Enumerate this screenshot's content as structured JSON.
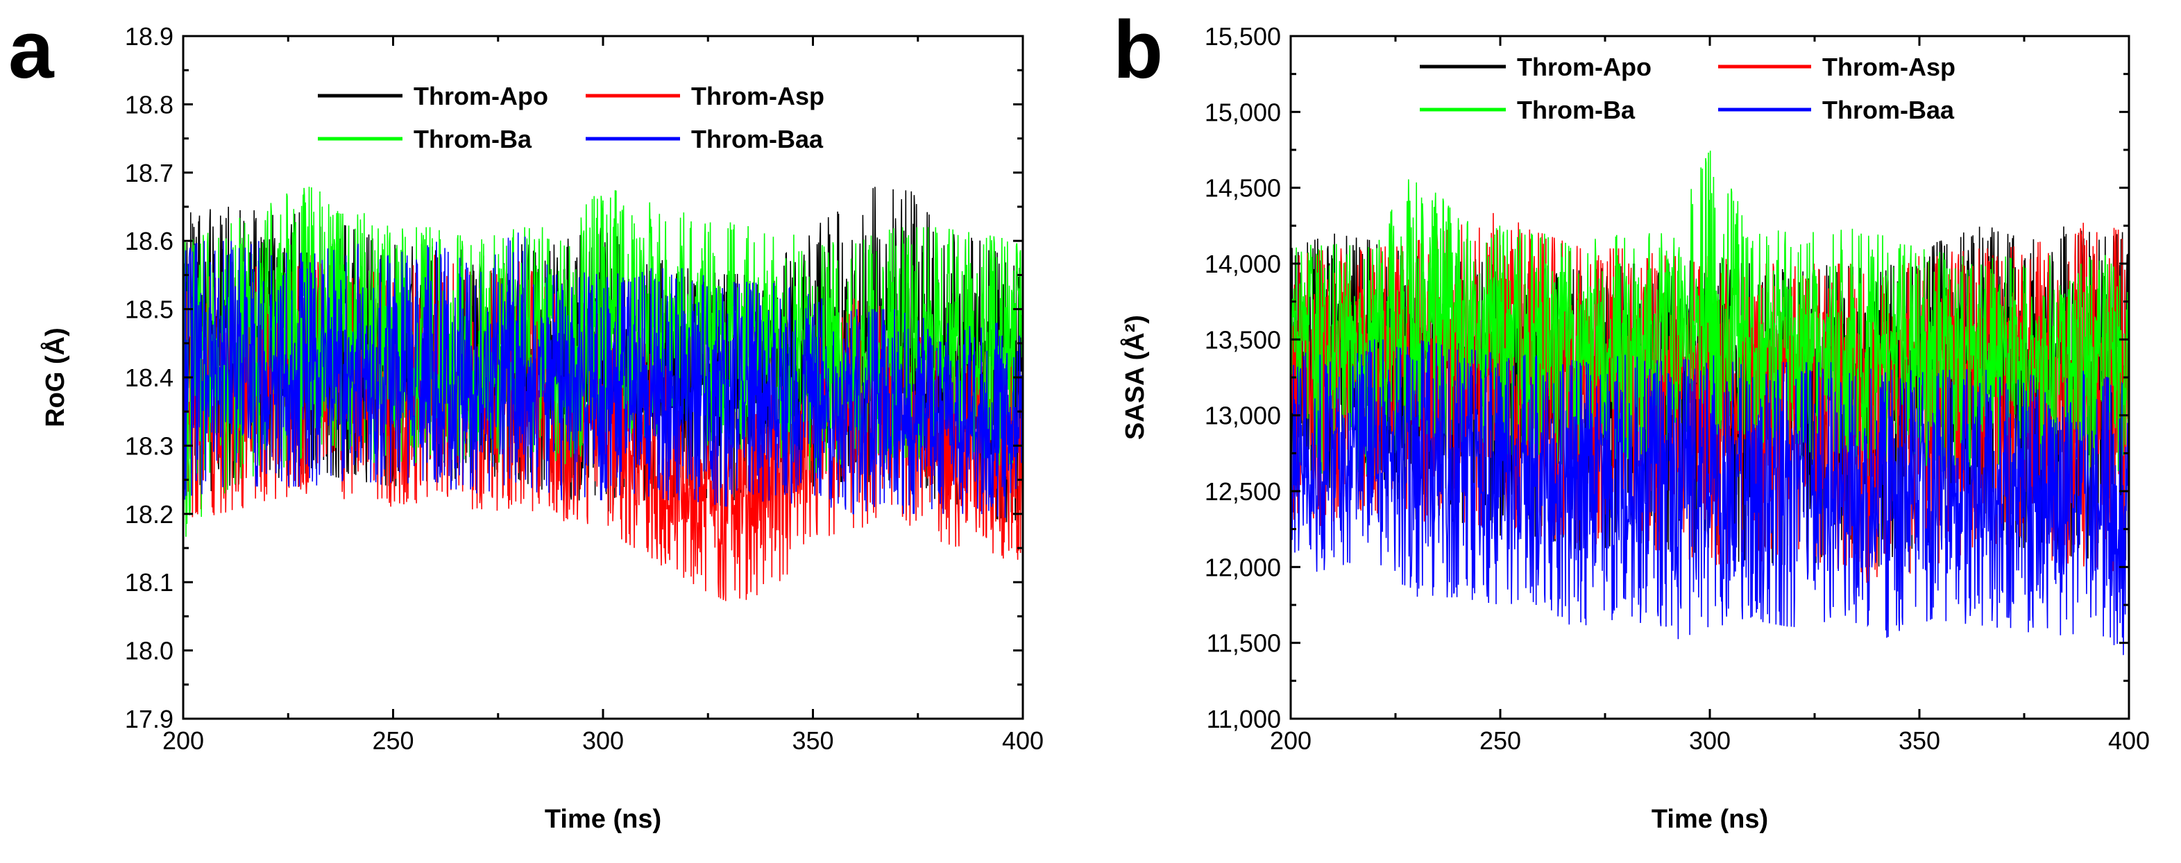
{
  "chart_data": [
    {
      "panel": "a",
      "type": "line",
      "title": "",
      "xlabel": "Time (ns)",
      "ylabel": "RoG (Å)",
      "xlim": [
        200,
        400
      ],
      "ylim": [
        17.9,
        18.9
      ],
      "x_ticks": [
        200,
        250,
        300,
        350,
        400
      ],
      "x_tick_labels": [
        "200",
        "250",
        "300",
        "350",
        "400"
      ],
      "y_ticks": [
        17.9,
        18.0,
        18.1,
        18.2,
        18.3,
        18.4,
        18.5,
        18.6,
        18.7,
        18.8,
        18.9
      ],
      "y_tick_labels": [
        "17.9",
        "18.0",
        "18.1",
        "18.2",
        "18.3",
        "18.4",
        "18.5",
        "18.6",
        "18.7",
        "18.8",
        "18.9"
      ],
      "legend_position": "top",
      "series": [
        {
          "name": "Throm-Apo",
          "color": "#000000",
          "x": [
            200,
            210,
            220,
            230,
            240,
            250,
            260,
            270,
            280,
            290,
            300,
            310,
            320,
            330,
            340,
            350,
            360,
            370,
            380,
            390,
            400
          ],
          "mean": [
            18.45,
            18.47,
            18.45,
            18.44,
            18.43,
            18.41,
            18.4,
            18.39,
            18.4,
            18.41,
            18.42,
            18.4,
            18.38,
            18.38,
            18.39,
            18.43,
            18.46,
            18.46,
            18.44,
            18.43,
            18.42
          ],
          "min": [
            18.22,
            18.24,
            18.25,
            18.26,
            18.25,
            18.24,
            18.25,
            18.24,
            18.25,
            18.22,
            18.2,
            18.22,
            18.22,
            18.21,
            18.22,
            18.24,
            18.25,
            18.24,
            18.22,
            18.2,
            18.18
          ],
          "max": [
            18.64,
            18.65,
            18.65,
            18.64,
            18.62,
            18.6,
            18.6,
            18.58,
            18.6,
            18.6,
            18.62,
            18.58,
            18.56,
            18.55,
            18.56,
            18.62,
            18.66,
            18.7,
            18.62,
            18.6,
            18.58
          ]
        },
        {
          "name": "Throm-Asp",
          "color": "#ff0000",
          "x": [
            200,
            210,
            220,
            230,
            240,
            250,
            260,
            270,
            280,
            290,
            300,
            310,
            320,
            330,
            340,
            350,
            360,
            370,
            380,
            390,
            400
          ],
          "mean": [
            18.36,
            18.37,
            18.37,
            18.38,
            18.37,
            18.36,
            18.37,
            18.36,
            18.37,
            18.34,
            18.33,
            18.28,
            18.24,
            18.22,
            18.24,
            18.3,
            18.34,
            18.33,
            18.3,
            18.28,
            18.27
          ],
          "min": [
            18.19,
            18.2,
            18.22,
            18.23,
            18.22,
            18.21,
            18.22,
            18.2,
            18.21,
            18.19,
            18.18,
            18.14,
            18.1,
            18.07,
            18.08,
            18.16,
            18.18,
            18.18,
            18.16,
            18.14,
            18.13
          ],
          "max": [
            18.56,
            18.57,
            18.56,
            18.58,
            18.56,
            18.55,
            18.58,
            18.55,
            18.57,
            18.52,
            18.5,
            18.45,
            18.38,
            18.34,
            18.38,
            18.46,
            18.52,
            18.5,
            18.46,
            18.44,
            18.42
          ]
        },
        {
          "name": "Throm-Ba",
          "color": "#00ff00",
          "x": [
            200,
            210,
            220,
            230,
            240,
            250,
            260,
            270,
            280,
            290,
            300,
            310,
            320,
            330,
            340,
            350,
            360,
            370,
            380,
            390,
            400
          ],
          "mean": [
            18.42,
            18.44,
            18.46,
            18.47,
            18.45,
            18.43,
            18.42,
            18.42,
            18.43,
            18.44,
            18.48,
            18.47,
            18.46,
            18.45,
            18.44,
            18.42,
            18.42,
            18.44,
            18.44,
            18.43,
            18.44
          ],
          "min": [
            18.16,
            18.22,
            18.26,
            18.28,
            18.28,
            18.27,
            18.28,
            18.27,
            18.28,
            18.27,
            18.3,
            18.3,
            18.3,
            18.3,
            18.28,
            18.26,
            18.26,
            18.28,
            18.28,
            18.28,
            18.26
          ],
          "max": [
            18.6,
            18.62,
            18.66,
            18.68,
            18.65,
            18.62,
            18.62,
            18.6,
            18.62,
            18.62,
            18.68,
            18.66,
            18.64,
            18.63,
            18.62,
            18.6,
            18.6,
            18.62,
            18.62,
            18.61,
            18.6
          ]
        },
        {
          "name": "Throm-Baa",
          "color": "#0000ff",
          "x": [
            200,
            210,
            220,
            230,
            240,
            250,
            260,
            270,
            280,
            290,
            300,
            310,
            320,
            330,
            340,
            350,
            360,
            370,
            380,
            390,
            400
          ],
          "mean": [
            18.41,
            18.42,
            18.41,
            18.4,
            18.41,
            18.4,
            18.4,
            18.39,
            18.42,
            18.39,
            18.38,
            18.38,
            18.38,
            18.37,
            18.38,
            18.36,
            18.35,
            18.34,
            18.33,
            18.33,
            18.33
          ],
          "min": [
            18.22,
            18.24,
            18.24,
            18.24,
            18.25,
            18.24,
            18.24,
            18.23,
            18.24,
            18.22,
            18.22,
            18.22,
            18.22,
            18.21,
            18.22,
            18.21,
            18.2,
            18.2,
            18.2,
            18.2,
            18.19
          ],
          "max": [
            18.6,
            18.6,
            18.6,
            18.58,
            18.6,
            18.58,
            18.6,
            18.56,
            18.62,
            18.56,
            18.55,
            18.56,
            18.56,
            18.54,
            18.54,
            18.52,
            18.5,
            18.5,
            18.48,
            18.48,
            18.48
          ]
        }
      ]
    },
    {
      "panel": "b",
      "type": "line",
      "title": "",
      "xlabel": "Time (ns)",
      "ylabel": "SASA (Å²)",
      "xlim": [
        200,
        400
      ],
      "ylim": [
        11000,
        15500
      ],
      "x_ticks": [
        200,
        250,
        300,
        350,
        400
      ],
      "x_tick_labels": [
        "200",
        "250",
        "300",
        "350",
        "400"
      ],
      "y_ticks": [
        11000,
        11500,
        12000,
        12500,
        13000,
        13500,
        14000,
        14500,
        15000,
        15500
      ],
      "y_tick_labels": [
        "11,000",
        "11,500",
        "12,000",
        "12,500",
        "13,000",
        "13,500",
        "14,000",
        "14,500",
        "15,000",
        "15,500"
      ],
      "legend_position": "top",
      "series": [
        {
          "name": "Throm-Apo",
          "color": "#000000",
          "x": [
            200,
            210,
            220,
            230,
            240,
            250,
            260,
            270,
            280,
            290,
            300,
            310,
            320,
            330,
            340,
            350,
            360,
            370,
            380,
            390,
            400
          ],
          "mean": [
            13400,
            13450,
            13400,
            13350,
            13350,
            13300,
            13300,
            13250,
            13300,
            13300,
            13300,
            13250,
            13250,
            13300,
            13250,
            13350,
            13400,
            13450,
            13450,
            13400,
            13350
          ],
          "min": [
            12300,
            12400,
            12400,
            12300,
            12300,
            12200,
            12200,
            12100,
            12150,
            12100,
            12000,
            12050,
            12000,
            12050,
            12000,
            12100,
            12150,
            12150,
            12100,
            12050,
            12000
          ],
          "max": [
            14100,
            14200,
            14150,
            14050,
            14050,
            14000,
            14000,
            13950,
            14000,
            14000,
            14050,
            14000,
            13950,
            14000,
            13950,
            14100,
            14200,
            14300,
            14250,
            14250,
            14200
          ]
        },
        {
          "name": "Throm-Asp",
          "color": "#ff0000",
          "x": [
            200,
            210,
            220,
            230,
            240,
            250,
            260,
            270,
            280,
            290,
            300,
            310,
            320,
            330,
            340,
            350,
            360,
            370,
            380,
            390,
            400
          ],
          "mean": [
            13300,
            13350,
            13300,
            13350,
            13400,
            13400,
            13350,
            13300,
            13300,
            13300,
            13300,
            13250,
            13250,
            13250,
            13200,
            13250,
            13300,
            13300,
            13300,
            13350,
            13300
          ],
          "min": [
            12200,
            12300,
            12350,
            12300,
            12300,
            12250,
            12200,
            12150,
            12150,
            12100,
            12000,
            12050,
            12000,
            12000,
            11800,
            12000,
            12050,
            12050,
            12050,
            12000,
            11900
          ],
          "max": [
            14050,
            14100,
            14100,
            14150,
            14250,
            14350,
            14200,
            14100,
            14100,
            14050,
            14050,
            14000,
            14000,
            14000,
            14000,
            14050,
            14100,
            14100,
            14150,
            14300,
            14200
          ]
        },
        {
          "name": "Throm-Ba",
          "color": "#00ff00",
          "x": [
            200,
            210,
            220,
            230,
            240,
            250,
            260,
            270,
            280,
            290,
            300,
            310,
            320,
            330,
            340,
            350,
            360,
            370,
            380,
            390,
            400
          ],
          "mean": [
            13450,
            13500,
            13450,
            13700,
            13600,
            13550,
            13500,
            13450,
            13500,
            13500,
            13750,
            13500,
            13450,
            13500,
            13450,
            13400,
            13350,
            13350,
            13350,
            13350,
            13200
          ],
          "min": [
            12500,
            12650,
            12600,
            12900,
            12800,
            12750,
            12700,
            12650,
            12700,
            12700,
            12900,
            12750,
            12700,
            12750,
            12700,
            12650,
            12600,
            12600,
            12600,
            12550,
            12500
          ],
          "max": [
            14100,
            14150,
            14150,
            14650,
            14300,
            14250,
            14200,
            14150,
            14200,
            14200,
            14750,
            14250,
            14200,
            14250,
            14200,
            14100,
            14050,
            14050,
            14050,
            14100,
            14000
          ]
        },
        {
          "name": "Throm-Baa",
          "color": "#0000ff",
          "x": [
            200,
            210,
            220,
            230,
            240,
            250,
            260,
            270,
            280,
            290,
            300,
            310,
            320,
            330,
            340,
            350,
            360,
            370,
            380,
            390,
            400
          ],
          "mean": [
            12700,
            12750,
            12750,
            12700,
            12700,
            12650,
            12650,
            12600,
            12600,
            12600,
            12600,
            12550,
            12550,
            12550,
            12500,
            12500,
            12500,
            12500,
            12450,
            12450,
            12400
          ],
          "min": [
            11900,
            12000,
            12050,
            11800,
            11800,
            11750,
            11750,
            11550,
            11700,
            11500,
            11600,
            11650,
            11600,
            11650,
            11500,
            11650,
            11600,
            11600,
            11550,
            11550,
            11400
          ],
          "max": [
            13400,
            13450,
            13500,
            13500,
            13450,
            13400,
            13400,
            13350,
            13400,
            13350,
            13400,
            13350,
            13350,
            13350,
            13300,
            13300,
            13300,
            13300,
            13250,
            13300,
            13200
          ]
        }
      ]
    }
  ]
}
